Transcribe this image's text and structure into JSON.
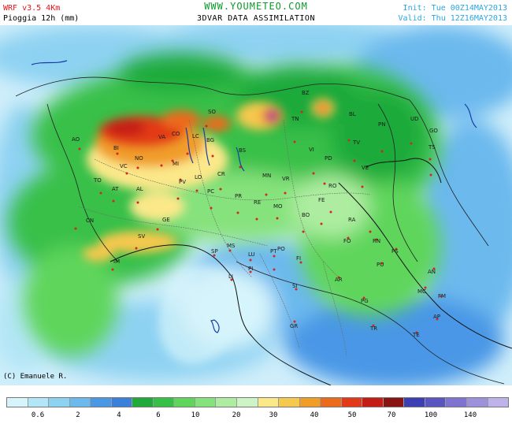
{
  "header": {
    "model": "WRF v3.5 4Km",
    "variable": "Pioggia 12h (mm)",
    "site": "WWW.YOUMETEO.COM",
    "assimilation": "3DVAR DATA ASSIMILATION",
    "init": "Init: Tue 00Z14MAY2013",
    "valid": "Valid: Thu 12Z16MAY2013"
  },
  "credit": "(C) Emanuele R.",
  "legend": {
    "colors": [
      "#d6f4fb",
      "#b3e6f6",
      "#8ed2f2",
      "#6cb9ee",
      "#4a97e6",
      "#3a7fd9",
      "#1faa3a",
      "#37c048",
      "#5fd55b",
      "#86e27c",
      "#aeeda1",
      "#cdf4c4",
      "#fbe889",
      "#f5c84e",
      "#f19d2a",
      "#ec6a1b",
      "#e23a18",
      "#c41d13",
      "#8a1412",
      "#3c3fb4",
      "#5956c2",
      "#7e73cf",
      "#9e91dc",
      "#bfb2ea"
    ],
    "labels": [
      "0.6",
      "2",
      "4",
      "6",
      "10",
      "20",
      "30",
      "40",
      "50",
      "70",
      "100",
      "140"
    ]
  },
  "map": {
    "cities": [
      "AO",
      "BI",
      "NO",
      "VC",
      "TO",
      "AT",
      "AL",
      "CN",
      "GE",
      "SV",
      "IM",
      "SO",
      "LC",
      "BG",
      "BS",
      "CO",
      "VA",
      "MI",
      "PV",
      "LO",
      "CR",
      "PC",
      "PR",
      "RE",
      "MN",
      "MO",
      "VR",
      "VI",
      "TN",
      "BZ",
      "BL",
      "TV",
      "PD",
      "VE",
      "RO",
      "FE",
      "BO",
      "UD",
      "PN",
      "GO",
      "TS",
      "SP",
      "MS",
      "LU",
      "PT",
      "PI",
      "LI",
      "FI",
      "PO",
      "AR",
      "SI",
      "GR",
      "FO",
      "RA",
      "RN",
      "PS",
      "PU",
      "AN",
      "MC",
      "FM",
      "AP",
      "PG",
      "TR",
      "TE"
    ]
  }
}
